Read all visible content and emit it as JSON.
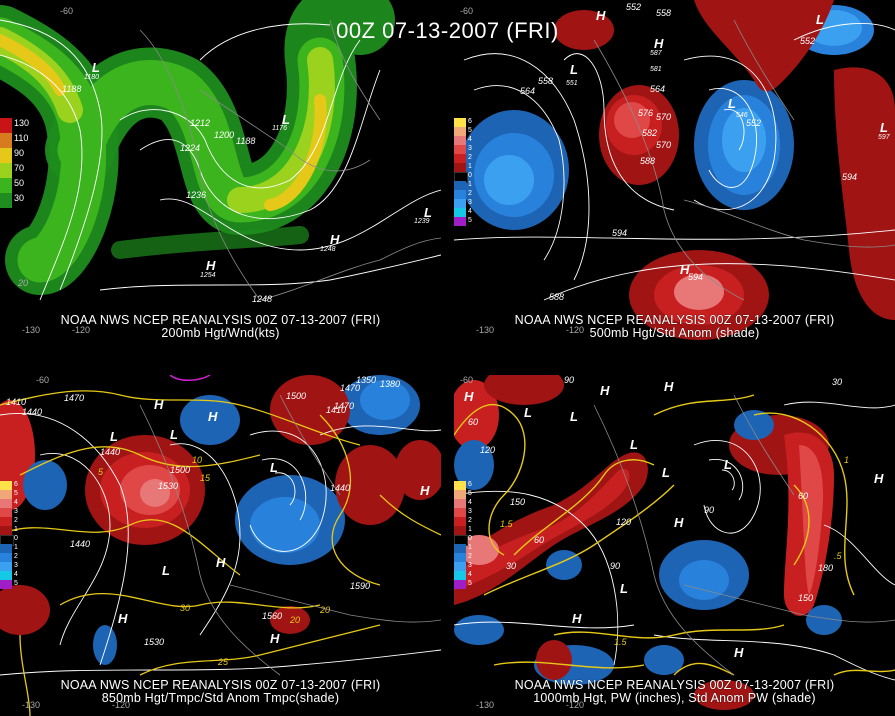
{
  "title": "00Z 07-13-2007 (FRI)",
  "panels": {
    "tl": {
      "caption1": "NOAA NWS NCEP REANALYSIS 00Z 07-13-2007 (FRI)",
      "caption2": "200mb Hgt/Wnd(kts)",
      "legend": [
        {
          "label": "130",
          "color": "#c81414"
        },
        {
          "label": "110",
          "color": "#d87a1e"
        },
        {
          "label": "90",
          "color": "#e6c818"
        },
        {
          "label": "70",
          "color": "#9ad21e"
        },
        {
          "label": "50",
          "color": "#3cb41e"
        },
        {
          "label": "30",
          "color": "#1e8c1e"
        }
      ],
      "lon_labels": [
        "-130",
        "-120",
        "-60"
      ],
      "labels": [
        "1188",
        "1212",
        "1224",
        "1200",
        "1188",
        "1236",
        "1248",
        "1176",
        "1254",
        "1180",
        "1239",
        "1248",
        "20",
        "60"
      ]
    },
    "tr": {
      "caption1": "NOAA NWS NCEP REANALYSIS 00Z 07-13-2007 (FRI)",
      "caption2": "500mb Hgt/Std Anom (shade)",
      "legend": [
        {
          "label": "6",
          "color": "#ffe24a"
        },
        {
          "label": "5",
          "color": "#f0a878"
        },
        {
          "label": "4",
          "color": "#e87878"
        },
        {
          "label": "3",
          "color": "#e04848"
        },
        {
          "label": "2",
          "color": "#c82020"
        },
        {
          "label": "1",
          "color": "#a01414"
        },
        {
          "label": "0",
          "color": "#000000"
        },
        {
          "label": "1",
          "color": "#1e64b4"
        },
        {
          "label": "2",
          "color": "#2882dc"
        },
        {
          "label": "3",
          "color": "#3ca0f0"
        },
        {
          "label": "4",
          "color": "#14c8e6"
        },
        {
          "label": "5",
          "color": "#a01ec8"
        }
      ],
      "lon_labels": [
        "-130",
        "-120",
        "-60"
      ],
      "labels": [
        "552",
        "558",
        "564",
        "570",
        "576",
        "582",
        "588",
        "594",
        "558",
        "564",
        "552",
        "546",
        "552",
        "594",
        "597",
        "588",
        "594",
        "570",
        "551",
        "581",
        "587"
      ]
    },
    "bl": {
      "caption1": "NOAA NWS NCEP REANALYSIS 00Z 07-13-2007 (FRI)",
      "caption2": "850mb Hgt/Tmpc/Std Anom Tmpc(shade)",
      "legend": [
        {
          "label": "6",
          "color": "#ffe24a"
        },
        {
          "label": "5",
          "color": "#f0a878"
        },
        {
          "label": "4",
          "color": "#e87878"
        },
        {
          "label": "3",
          "color": "#e04848"
        },
        {
          "label": "2",
          "color": "#c82020"
        },
        {
          "label": "1",
          "color": "#a01414"
        },
        {
          "label": "0",
          "color": "#000000"
        },
        {
          "label": "1",
          "color": "#1e64b4"
        },
        {
          "label": "2",
          "color": "#2882dc"
        },
        {
          "label": "3",
          "color": "#3ca0f0"
        },
        {
          "label": "4",
          "color": "#14c8e6"
        },
        {
          "label": "5",
          "color": "#a01ec8"
        }
      ],
      "lon_labels": [
        "-130",
        "-120",
        "-60"
      ],
      "labels": [
        "1410",
        "1440",
        "1470",
        "1440",
        "1500",
        "1530",
        "1440",
        "1470",
        "1500",
        "1590",
        "1560",
        "1530",
        "1350",
        "1440",
        "1410",
        "1380",
        "1470",
        "5",
        "10",
        "15",
        "20",
        "25",
        "30",
        "20"
      ]
    },
    "br": {
      "caption1": "NOAA NWS NCEP REANALYSIS 00Z 07-13-2007 (FRI)",
      "caption2": "1000mb Hgt, PW (inches), Std Anom PW (shade)",
      "legend": [
        {
          "label": "6",
          "color": "#ffe24a"
        },
        {
          "label": "5",
          "color": "#f0a878"
        },
        {
          "label": "4",
          "color": "#e87878"
        },
        {
          "label": "3",
          "color": "#e04848"
        },
        {
          "label": "2",
          "color": "#c82020"
        },
        {
          "label": "1",
          "color": "#a01414"
        },
        {
          "label": "0",
          "color": "#000000"
        },
        {
          "label": "1",
          "color": "#1e64b4"
        },
        {
          "label": "2",
          "color": "#2882dc"
        },
        {
          "label": "3",
          "color": "#3ca0f0"
        },
        {
          "label": "4",
          "color": "#14c8e6"
        },
        {
          "label": "5",
          "color": "#a01ec8"
        }
      ],
      "lon_labels": [
        "-130",
        "-120",
        "-60"
      ],
      "labels": [
        "30",
        "60",
        "90",
        "120",
        "150",
        "180",
        "90",
        "60",
        "30",
        "1.5",
        ".5",
        "1",
        "1.5",
        "150",
        "120",
        "90",
        "60"
      ]
    }
  }
}
